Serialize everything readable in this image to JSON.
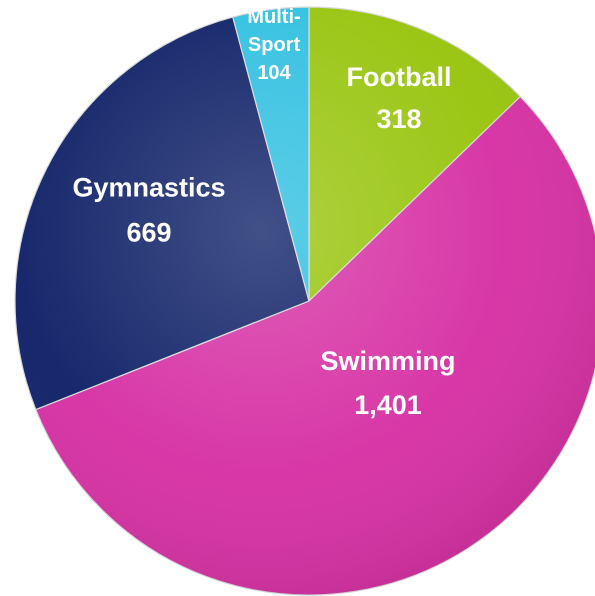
{
  "chart_data": {
    "type": "pie",
    "title": "",
    "slices": [
      {
        "name": "Football",
        "value": 318,
        "value_label": "318",
        "color": "#97c40c"
      },
      {
        "name": "Swimming",
        "value": 1401,
        "value_label": "1,401",
        "color": "#d62fa3"
      },
      {
        "name": "Gymnastics",
        "value": 669,
        "value_label": "669",
        "color": "#0d1f66"
      },
      {
        "name": "Multi-Sport",
        "name_lines": [
          "Multi-",
          "Sport"
        ],
        "value": 104,
        "value_label": "104",
        "color": "#2ebfe0"
      }
    ],
    "start_angle": "12 o'clock",
    "direction": "clockwise",
    "legend": "none",
    "labels": "inside"
  }
}
